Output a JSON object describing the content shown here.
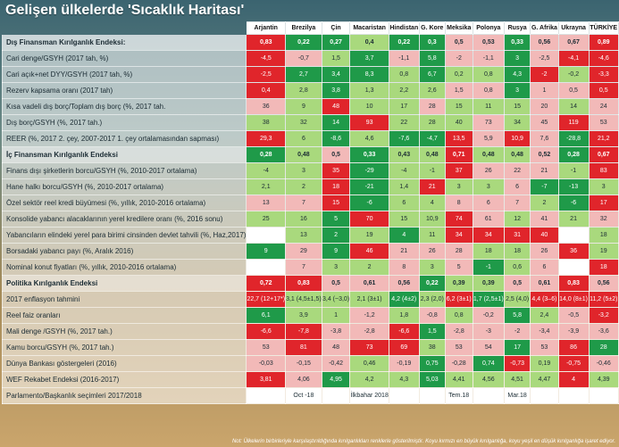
{
  "title": "Gelişen ülkelerde 'Sıcaklık Haritası'",
  "countries": [
    "Arjantin",
    "Brezilya",
    "Çin",
    "Macaristan",
    "Hindistan",
    "G. Kore",
    "Meksika",
    "Polonya",
    "Rusya",
    "G. Afrika",
    "Ukrayna",
    "TÜRKİYE"
  ],
  "colors": {
    "g": "#1f9a49",
    "lg": "#a9d97d",
    "w": "#ffffff",
    "lr": "#f2b9b8",
    "r": "#e0252b"
  },
  "rows": [
    {
      "label": "Dış Finansman Kırılganlık Endeksi:",
      "section": true,
      "cells": [
        [
          "0,83",
          "r"
        ],
        [
          "0,22",
          "g"
        ],
        [
          "0,27",
          "g"
        ],
        [
          "0,4",
          "lg"
        ],
        [
          "0,22",
          "g"
        ],
        [
          "0,3",
          "g"
        ],
        [
          "0,5",
          "lr"
        ],
        [
          "0,53",
          "lr"
        ],
        [
          "0,33",
          "g"
        ],
        [
          "0,56",
          "lr"
        ],
        [
          "0,67",
          "lr"
        ],
        [
          "0,89",
          "r"
        ]
      ]
    },
    {
      "label": "Cari denge/GSYH (2017 tah, %)",
      "cells": [
        [
          "-4,5",
          "r"
        ],
        [
          "-0,7",
          "lr"
        ],
        [
          "1,5",
          "lg"
        ],
        [
          "3,7",
          "g"
        ],
        [
          "-1,1",
          "lr"
        ],
        [
          "5,8",
          "g"
        ],
        [
          "-2",
          "lr"
        ],
        [
          "-1,1",
          "lr"
        ],
        [
          "3",
          "g"
        ],
        [
          "-2,5",
          "lr"
        ],
        [
          "-4,1",
          "r"
        ],
        [
          "-4,6",
          "r"
        ]
      ]
    },
    {
      "label": "Cari açık+net DYY/GSYH (2017 tah, %)",
      "cells": [
        [
          "-2,5",
          "r"
        ],
        [
          "2,7",
          "g"
        ],
        [
          "3,4",
          "g"
        ],
        [
          "8,3",
          "g"
        ],
        [
          "0,8",
          "lg"
        ],
        [
          "6,7",
          "g"
        ],
        [
          "0,2",
          "lg"
        ],
        [
          "0,8",
          "lg"
        ],
        [
          "4,3",
          "g"
        ],
        [
          "-2",
          "r"
        ],
        [
          "-0,2",
          "lg"
        ],
        [
          "-3,3",
          "r"
        ]
      ]
    },
    {
      "label": "Rezerv kapsama oranı (2017 tah)",
      "cells": [
        [
          "0,4",
          "r"
        ],
        [
          "2,8",
          "lg"
        ],
        [
          "3,8",
          "g"
        ],
        [
          "1,3",
          "lg"
        ],
        [
          "2,2",
          "lg"
        ],
        [
          "2,6",
          "lg"
        ],
        [
          "1,5",
          "lr"
        ],
        [
          "0,8",
          "lr"
        ],
        [
          "3",
          "g"
        ],
        [
          "1",
          "lr"
        ],
        [
          "0,5",
          "lr"
        ],
        [
          "0,5",
          "r"
        ]
      ]
    },
    {
      "label": "Kısa vadeli dış borç/Toplam dış borç (%, 2017 tah.",
      "cells": [
        [
          "36",
          "lr"
        ],
        [
          "9",
          "lg"
        ],
        [
          "48",
          "r"
        ],
        [
          "10",
          "lg"
        ],
        [
          "17",
          "lg"
        ],
        [
          "28",
          "lr"
        ],
        [
          "15",
          "lg"
        ],
        [
          "11",
          "lg"
        ],
        [
          "15",
          "lg"
        ],
        [
          "20",
          "lr"
        ],
        [
          "14",
          "lg"
        ],
        [
          "24",
          "lr"
        ]
      ]
    },
    {
      "label": "Dış borç/GSYH (%, 2017 tah.)",
      "cells": [
        [
          "38",
          "lg"
        ],
        [
          "32",
          "lg"
        ],
        [
          "14",
          "g"
        ],
        [
          "93",
          "r"
        ],
        [
          "22",
          "lg"
        ],
        [
          "28",
          "lg"
        ],
        [
          "40",
          "lg"
        ],
        [
          "73",
          "lr"
        ],
        [
          "34",
          "lg"
        ],
        [
          "45",
          "lr"
        ],
        [
          "119",
          "r"
        ],
        [
          "53",
          "lr"
        ]
      ]
    },
    {
      "label": "REER (%, 2017 2. çey, 2007-2017 1. çey ortalamasından sapması)",
      "cells": [
        [
          "29,3",
          "r"
        ],
        [
          "6",
          "lg"
        ],
        [
          "-8,6",
          "g"
        ],
        [
          "4,6",
          "lg"
        ],
        [
          "-7,6",
          "g"
        ],
        [
          "-4,7",
          "g"
        ],
        [
          "13,5",
          "r"
        ],
        [
          "5,9",
          "lr"
        ],
        [
          "10,9",
          "r"
        ],
        [
          "7,6",
          "lr"
        ],
        [
          "-28,8",
          "g"
        ],
        [
          "21,2",
          "r"
        ]
      ]
    },
    {
      "label": "İç Finansman Kırılganlık Endeksi",
      "section": true,
      "cells": [
        [
          "0,28",
          "g"
        ],
        [
          "0,48",
          "lg"
        ],
        [
          "0,5",
          "lr"
        ],
        [
          "0,33",
          "g"
        ],
        [
          "0,43",
          "lg"
        ],
        [
          "0,48",
          "lg"
        ],
        [
          "0,71",
          "r"
        ],
        [
          "0,48",
          "lg"
        ],
        [
          "0,48",
          "lg"
        ],
        [
          "0,52",
          "lr"
        ],
        [
          "0,28",
          "g"
        ],
        [
          "0,67",
          "r"
        ]
      ]
    },
    {
      "label": "Finans dışı şirketlerin borcu/GSYH (%, 2010-2017 ortalama)",
      "cells": [
        [
          "-4",
          "lg"
        ],
        [
          "3",
          "lg"
        ],
        [
          "35",
          "r"
        ],
        [
          "-29",
          "g"
        ],
        [
          "-4",
          "lg"
        ],
        [
          "-1",
          "lg"
        ],
        [
          "37",
          "r"
        ],
        [
          "26",
          "lr"
        ],
        [
          "22",
          "lr"
        ],
        [
          "21",
          "lr"
        ],
        [
          "-1",
          "lg"
        ],
        [
          "83",
          "r"
        ]
      ]
    },
    {
      "label": "Hane halkı borcu/GSYH (%, 2010-2017 ortalama)",
      "cells": [
        [
          "2,1",
          "lg"
        ],
        [
          "2",
          "lg"
        ],
        [
          "18",
          "r"
        ],
        [
          "-21",
          "g"
        ],
        [
          "1,4",
          "lg"
        ],
        [
          "21",
          "r"
        ],
        [
          "3",
          "lg"
        ],
        [
          "3",
          "lg"
        ],
        [
          "6",
          "lr"
        ],
        [
          "-7",
          "g"
        ],
        [
          "-13",
          "g"
        ],
        [
          "3",
          "lg"
        ]
      ]
    },
    {
      "label": "Özel sektör reel kredi büyümesi (%, yıllık, 2010-2016 ortalama)",
      "cells": [
        [
          "13",
          "lr"
        ],
        [
          "7",
          "lr"
        ],
        [
          "15",
          "r"
        ],
        [
          "-6",
          "g"
        ],
        [
          "6",
          "lg"
        ],
        [
          "4",
          "lg"
        ],
        [
          "8",
          "lr"
        ],
        [
          "6",
          "lr"
        ],
        [
          "7",
          "lr"
        ],
        [
          "2",
          "lg"
        ],
        [
          "-6",
          "g"
        ],
        [
          "17",
          "r"
        ]
      ]
    },
    {
      "label": "Konsolide yabancı alacaklarının yerel kredilere oranı (%, 2016 sonu)",
      "cells": [
        [
          "25",
          "lg"
        ],
        [
          "16",
          "lg"
        ],
        [
          "5",
          "g"
        ],
        [
          "70",
          "r"
        ],
        [
          "15",
          "lg"
        ],
        [
          "10,9",
          "lg"
        ],
        [
          "74",
          "r"
        ],
        [
          "61",
          "lr"
        ],
        [
          "12",
          "lg"
        ],
        [
          "41",
          "lr"
        ],
        [
          "21",
          "lg"
        ],
        [
          "32",
          "lr"
        ]
      ]
    },
    {
      "label": "Yabancıların elindeki yerel para birimi cinsinden devlet tahvili (%, Haz,2017)",
      "cells": [
        [
          "",
          "w"
        ],
        [
          "13",
          "lg"
        ],
        [
          "2",
          "g"
        ],
        [
          "19",
          "lg"
        ],
        [
          "4",
          "g"
        ],
        [
          "11",
          "lg"
        ],
        [
          "34",
          "r"
        ],
        [
          "34",
          "r"
        ],
        [
          "31",
          "r"
        ],
        [
          "40",
          "r"
        ],
        [
          "",
          "w"
        ],
        [
          "18",
          "lg"
        ]
      ]
    },
    {
      "label": "Borsadaki yabancı payı (%, Aralık 2016)",
      "cells": [
        [
          "9",
          "g"
        ],
        [
          "29",
          "lr"
        ],
        [
          "9",
          "g"
        ],
        [
          "46",
          "r"
        ],
        [
          "21",
          "lr"
        ],
        [
          "26",
          "lr"
        ],
        [
          "28",
          "lr"
        ],
        [
          "18",
          "lg"
        ],
        [
          "18",
          "lg"
        ],
        [
          "26",
          "lr"
        ],
        [
          "36",
          "r"
        ],
        [
          "19",
          "lg"
        ]
      ]
    },
    {
      "label": "Nominal konut fiyatları (%, yıllık, 2010-2016 ortalama)",
      "cells": [
        [
          "",
          "w"
        ],
        [
          "7",
          "lr"
        ],
        [
          "3",
          "lg"
        ],
        [
          "2",
          "lg"
        ],
        [
          "8",
          "lr"
        ],
        [
          "3",
          "lg"
        ],
        [
          "5",
          "lr"
        ],
        [
          "-1",
          "g"
        ],
        [
          "0,6",
          "lg"
        ],
        [
          "6",
          "lr"
        ],
        [
          "",
          "w"
        ],
        [
          "18",
          "r"
        ]
      ]
    },
    {
      "label": "Politika Kırılganlık Endeksi",
      "section": true,
      "cells": [
        [
          "0,72",
          "r"
        ],
        [
          "0,83",
          "r"
        ],
        [
          "0,5",
          "lr"
        ],
        [
          "0,61",
          "lr"
        ],
        [
          "0,56",
          "lr"
        ],
        [
          "0,22",
          "g"
        ],
        [
          "0,39",
          "lg"
        ],
        [
          "0,39",
          "lg"
        ],
        [
          "0,5",
          "lr"
        ],
        [
          "0,61",
          "lr"
        ],
        [
          "0,83",
          "r"
        ],
        [
          "0,56",
          "lr"
        ]
      ]
    },
    {
      "label": "2017 enflasyon tahmini",
      "cells": [
        [
          "22,7 (12+17*)",
          "r"
        ],
        [
          "3,1 (4,5±1,5)",
          "lg"
        ],
        [
          "3,4 (~3,0)",
          "lg"
        ],
        [
          "2,1 (3±1)",
          "lg"
        ],
        [
          "4,2 (4±2)",
          "g"
        ],
        [
          "2,3 (2,0)",
          "lg"
        ],
        [
          "6,2 (3±1)",
          "r"
        ],
        [
          "1,7 (2,5±1)",
          "g"
        ],
        [
          "2,5 (4,0)",
          "lg"
        ],
        [
          "4,4 (3–6)",
          "r"
        ],
        [
          "14,0 (8±1)",
          "r"
        ],
        [
          "11,2 (5±2)",
          "r"
        ]
      ]
    },
    {
      "label": "Reel faiz oranları",
      "cells": [
        [
          "6,1",
          "g"
        ],
        [
          "3,9",
          "lg"
        ],
        [
          "1",
          "lg"
        ],
        [
          "-1,2",
          "lr"
        ],
        [
          "1,8",
          "lg"
        ],
        [
          "-0,8",
          "lr"
        ],
        [
          "0,8",
          "lg"
        ],
        [
          "-0,2",
          "lr"
        ],
        [
          "5,8",
          "g"
        ],
        [
          "2,4",
          "lg"
        ],
        [
          "-0,5",
          "lr"
        ],
        [
          "-3,2",
          "r"
        ]
      ]
    },
    {
      "label": "Mali denge /GSYH (%, 2017 tah.)",
      "cells": [
        [
          "-6,6",
          "r"
        ],
        [
          "-7,8",
          "r"
        ],
        [
          "-3,8",
          "lr"
        ],
        [
          "-2,8",
          "lr"
        ],
        [
          "-6,6",
          "r"
        ],
        [
          "1,5",
          "g"
        ],
        [
          "-2,8",
          "lr"
        ],
        [
          "-3",
          "lr"
        ],
        [
          "-2",
          "lr"
        ],
        [
          "-3,4",
          "lr"
        ],
        [
          "-3,9",
          "lr"
        ],
        [
          "-3,6",
          "lr"
        ]
      ]
    },
    {
      "label": "Kamu borcu/GSYH (%, 2017 tah.)",
      "cells": [
        [
          "53",
          "lr"
        ],
        [
          "81",
          "r"
        ],
        [
          "48",
          "lr"
        ],
        [
          "73",
          "r"
        ],
        [
          "69",
          "r"
        ],
        [
          "38",
          "lg"
        ],
        [
          "53",
          "lr"
        ],
        [
          "54",
          "lr"
        ],
        [
          "17",
          "g"
        ],
        [
          "53",
          "lr"
        ],
        [
          "86",
          "r"
        ],
        [
          "28",
          "g"
        ]
      ]
    },
    {
      "label": "Dünya Bankası göstergeleri (2016)",
      "cells": [
        [
          "-0,03",
          "lr"
        ],
        [
          "-0,15",
          "lr"
        ],
        [
          "-0,42",
          "lr"
        ],
        [
          "0,46",
          "lg"
        ],
        [
          "-0,19",
          "lr"
        ],
        [
          "0,75",
          "g"
        ],
        [
          "-0,28",
          "lr"
        ],
        [
          "0,74",
          "g"
        ],
        [
          "-0,73",
          "r"
        ],
        [
          "0,19",
          "lg"
        ],
        [
          "-0,75",
          "r"
        ],
        [
          "-0,46",
          "lr"
        ]
      ]
    },
    {
      "label": "WEF Rekabet Endeksi (2016-2017)",
      "cells": [
        [
          "3,81",
          "r"
        ],
        [
          "4,06",
          "lr"
        ],
        [
          "4,95",
          "g"
        ],
        [
          "4,2",
          "lg"
        ],
        [
          "4,3",
          "lg"
        ],
        [
          "5,03",
          "g"
        ],
        [
          "4,41",
          "lg"
        ],
        [
          "4,56",
          "lg"
        ],
        [
          "4,51",
          "lg"
        ],
        [
          "4,47",
          "lg"
        ],
        [
          "4",
          "r"
        ],
        [
          "4,39",
          "lg"
        ]
      ]
    },
    {
      "label": "Parlamento/Başkanlık seçimleri 2017/2018",
      "cells": [
        [
          "",
          "w"
        ],
        [
          "Oct -18",
          "w"
        ],
        [
          "",
          "w"
        ],
        [
          "İlkbahar 2018",
          "w"
        ],
        [
          "",
          "w"
        ],
        [
          "",
          "w"
        ],
        [
          "Tem.18",
          "w"
        ],
        [
          "",
          "w"
        ],
        [
          "Mar.18",
          "w"
        ],
        [
          "",
          "w"
        ],
        [
          "",
          "w"
        ],
        [
          "",
          "w"
        ]
      ]
    }
  ],
  "footnote": "Not: Ülkelerin birbirleriyle karşılaştırıldığında kırılganlıkları renklerle gösterilmiştir. Koyu kırmızı en büyük kırılganlığa, koyu yeşil en düşük kırılganlığa işaret ediyor."
}
